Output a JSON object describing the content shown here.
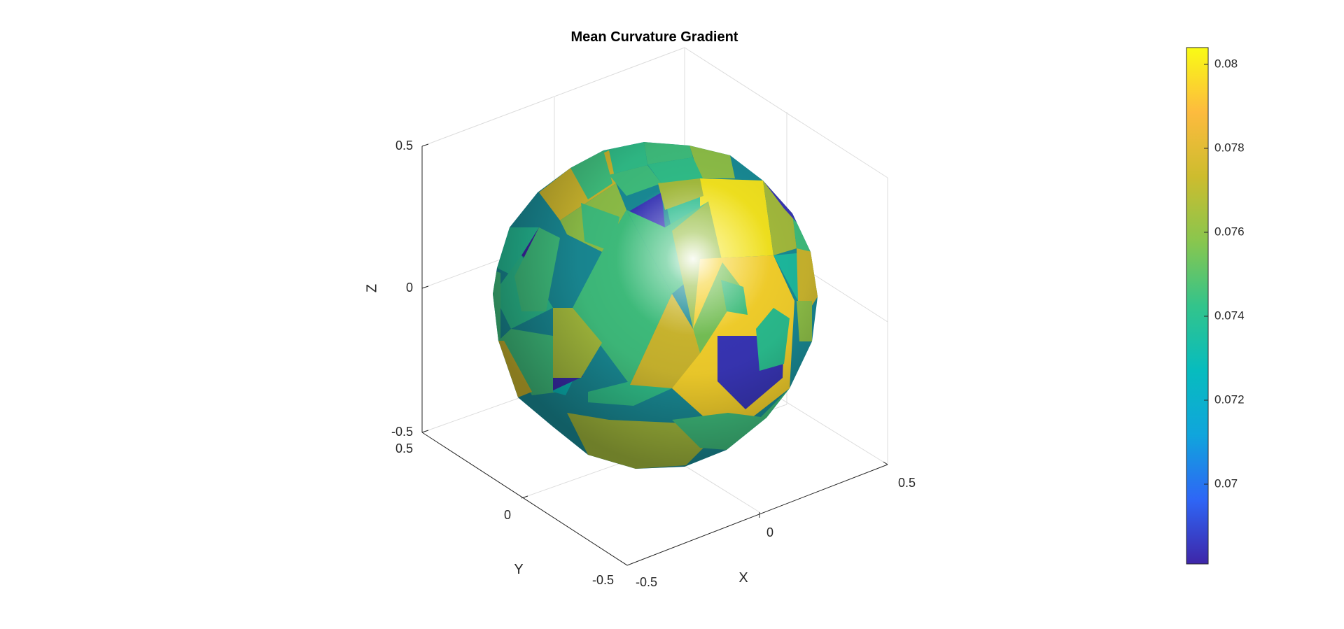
{
  "chart_data": {
    "type": "surface",
    "title": "Mean Curvature Gradient",
    "xlabel": "X",
    "ylabel": "Y",
    "zlabel": "Z",
    "xlim": [
      -0.5,
      0.5
    ],
    "ylim": [
      -0.5,
      0.5
    ],
    "zlim": [
      -0.5,
      0.5
    ],
    "x_ticks": [
      "-0.5",
      "0",
      "0.5"
    ],
    "y_ticks": [
      "-0.5",
      "0",
      "0.5"
    ],
    "z_ticks": [
      "-0.5",
      "0",
      "0.5"
    ],
    "grid": true,
    "box": true,
    "colormap": "parula",
    "colormap_stops": [
      "#3e26a8",
      "#2e66f6",
      "#10a5dc",
      "#07bcbe",
      "#33c48b",
      "#89c64e",
      "#cdbc2e",
      "#fdbb3e",
      "#f9fb15"
    ],
    "colorbar": {
      "position": "right",
      "clim": [
        0.0681,
        0.0804
      ],
      "ticks": [
        0.07,
        0.072,
        0.074,
        0.076,
        0.078,
        0.08
      ],
      "tick_labels": [
        "0.07",
        "0.072",
        "0.074",
        "0.076",
        "0.078",
        "0.08"
      ]
    },
    "patches": [
      {
        "c": 0.0742
      },
      {
        "c": 0.0775
      },
      {
        "c": 0.0745
      },
      {
        "c": 0.0681
      },
      {
        "c": 0.0745
      },
      {
        "c": 0.076
      },
      {
        "c": 0.0745
      },
      {
        "c": 0.0742
      },
      {
        "c": 0.0685
      },
      {
        "c": 0.074
      },
      {
        "c": 0.08
      },
      {
        "c": 0.0765
      },
      {
        "c": 0.0735
      },
      {
        "c": 0.0775
      },
      {
        "c": 0.0745
      },
      {
        "c": 0.0685
      },
      {
        "c": 0.0738
      },
      {
        "c": 0.076
      },
      {
        "c": 0.0745
      },
      {
        "c": 0.0745
      },
      {
        "c": 0.0762
      },
      {
        "c": 0.0745
      },
      {
        "c": 0.0795
      },
      {
        "c": 0.0755
      },
      {
        "c": 0.074
      },
      {
        "c": 0.0745
      },
      {
        "c": 0.0745
      },
      {
        "c": 0.0728
      },
      {
        "c": 0.0683
      },
      {
        "c": 0.0765
      },
      {
        "c": 0.0685
      },
      {
        "c": 0.0742
      },
      {
        "c": 0.0775
      },
      {
        "c": 0.0765
      },
      {
        "c": 0.0745
      },
      {
        "c": 0.0745
      },
      {
        "c": 0.0745
      },
      {
        "c": 0.074
      },
      {
        "c": 0.0775
      },
      {
        "c": 0.076
      },
      {
        "c": 0.0745
      },
      {
        "c": 0.0775
      },
      {
        "c": 0.0765
      }
    ]
  }
}
